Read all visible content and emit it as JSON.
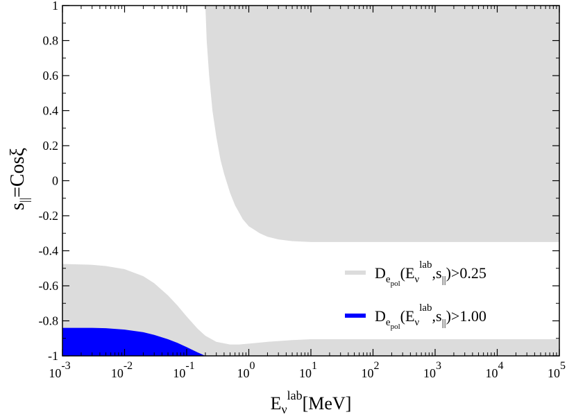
{
  "chart_data": {
    "type": "area",
    "x_scale": "log",
    "xlim": [
      0.001,
      100000
    ],
    "ylim": [
      -1,
      1
    ],
    "grid": false,
    "legend_position": "lower-right",
    "x_ticks": [
      {
        "value": 0.001,
        "base": "10",
        "exp": "-3"
      },
      {
        "value": 0.01,
        "base": "10",
        "exp": "-2"
      },
      {
        "value": 0.1,
        "base": "10",
        "exp": "-1"
      },
      {
        "value": 1,
        "base": "10",
        "exp": "0"
      },
      {
        "value": 10,
        "base": "10",
        "exp": "1"
      },
      {
        "value": 100,
        "base": "10",
        "exp": "2"
      },
      {
        "value": 1000,
        "base": "10",
        "exp": "3"
      },
      {
        "value": 10000,
        "base": "10",
        "exp": "4"
      },
      {
        "value": 100000,
        "base": "10",
        "exp": "5"
      }
    ],
    "y_ticks": [
      {
        "value": -1,
        "label": "-1"
      },
      {
        "value": -0.8,
        "label": "-0.8"
      },
      {
        "value": -0.6,
        "label": "-0.6"
      },
      {
        "value": -0.4,
        "label": "-0.4"
      },
      {
        "value": -0.2,
        "label": "-0.2"
      },
      {
        "value": 0,
        "label": "0"
      },
      {
        "value": 0.2,
        "label": "0.2"
      },
      {
        "value": 0.4,
        "label": "0.4"
      },
      {
        "value": 0.6,
        "label": "0.6"
      },
      {
        "value": 0.8,
        "label": "0.8"
      },
      {
        "value": 1,
        "label": "1"
      }
    ],
    "xlabel": {
      "main": "E",
      "sub": "ν",
      "sup": "lab",
      "unit": "[MeV]"
    },
    "ylabel": {
      "main": "s",
      "sub": "||",
      "rest": "=Cosξ"
    },
    "series": [
      {
        "legend": {
          "main": "D",
          "sub": "e",
          "subsub": "pol",
          "args_open": "(E",
          "args_sub": "ν",
          "args_sup": "lab",
          "args_mid": ",s",
          "args_mid_sub": "||",
          "args_close": ")>0.25"
        },
        "color": "#dcdcdc",
        "regions": [
          {
            "name": "upper",
            "x": [
              0.2,
              0.21,
              0.23,
              0.26,
              0.3,
              0.35,
              0.4,
              0.5,
              0.6,
              0.8,
              1,
              1.5,
              2,
              3,
              5,
              10,
              20,
              100,
              1000,
              10000,
              100000
            ],
            "lower": [
              1,
              0.8,
              0.6,
              0.4,
              0.25,
              0.12,
              0.04,
              -0.07,
              -0.14,
              -0.22,
              -0.26,
              -0.3,
              -0.32,
              -0.335,
              -0.345,
              -0.35,
              -0.35,
              -0.35,
              -0.35,
              -0.35,
              -0.35
            ],
            "upper": [
              1,
              1,
              1,
              1,
              1,
              1,
              1,
              1,
              1,
              1,
              1,
              1,
              1,
              1,
              1,
              1,
              1,
              1,
              1,
              1,
              1
            ]
          },
          {
            "name": "lower",
            "x": [
              0.001,
              0.002,
              0.003,
              0.005,
              0.01,
              0.02,
              0.03,
              0.05,
              0.07,
              0.1,
              0.15,
              0.2,
              0.3,
              0.5,
              0.7,
              1,
              2,
              5,
              10,
              100,
              1000,
              10000,
              100000
            ],
            "lower": [
              -1,
              -1,
              -1,
              -1,
              -1,
              -1,
              -1,
              -1,
              -1,
              -1,
              -1,
              -1,
              -1,
              -1,
              -1,
              -1,
              -1,
              -1,
              -1,
              -1,
              -1,
              -1,
              -1
            ],
            "upper": [
              -0.475,
              -0.478,
              -0.48,
              -0.487,
              -0.505,
              -0.545,
              -0.585,
              -0.655,
              -0.71,
              -0.775,
              -0.845,
              -0.885,
              -0.92,
              -0.935,
              -0.935,
              -0.93,
              -0.92,
              -0.91,
              -0.905,
              -0.905,
              -0.905,
              -0.905,
              -0.905
            ]
          }
        ]
      },
      {
        "legend": {
          "main": "D",
          "sub": "e",
          "subsub": "pol",
          "args_open": "(E",
          "args_sub": "ν",
          "args_sup": "lab",
          "args_mid": ",s",
          "args_mid_sub": "||",
          "args_close": ")>1.00"
        },
        "color": "#0000ff",
        "regions": [
          {
            "name": "main",
            "x": [
              0.001,
              0.002,
              0.003,
              0.005,
              0.01,
              0.02,
              0.03,
              0.05,
              0.07,
              0.1,
              0.15,
              0.2
            ],
            "lower": [
              -1,
              -1,
              -1,
              -1,
              -1,
              -1,
              -1,
              -1,
              -1,
              -1,
              -1,
              -1
            ],
            "upper": [
              -0.84,
              -0.84,
              -0.84,
              -0.842,
              -0.85,
              -0.865,
              -0.88,
              -0.905,
              -0.925,
              -0.95,
              -0.98,
              -1
            ]
          }
        ]
      }
    ]
  }
}
